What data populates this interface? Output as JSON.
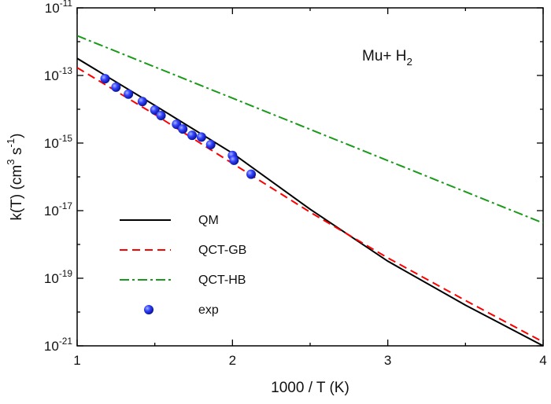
{
  "chart_data": {
    "type": "line",
    "annotation": "Mu+ H_{2}",
    "xlabel": "1000 / T (K)",
    "ylabel": "k(T) (cm^{3} s^{-1})",
    "xlim": [
      1,
      4
    ],
    "xticks": [
      1,
      2,
      3,
      4
    ],
    "minor_xticks": [
      1.5,
      2.5,
      3.5
    ],
    "ylim": [
      1e-21,
      1e-11
    ],
    "log_y": true,
    "yticks": [
      {
        "value": 1e-11,
        "label": "10^{-11}"
      },
      {
        "value": 1e-13,
        "label": "10^{-13}"
      },
      {
        "value": 1e-15,
        "label": "10^{-15}"
      },
      {
        "value": 1e-17,
        "label": "10^{-17}"
      },
      {
        "value": 1e-19,
        "label": "10^{-19}"
      },
      {
        "value": 1e-21,
        "label": "10^{-21}"
      }
    ],
    "minor_yticks": [
      1e-12,
      1e-14,
      1e-16,
      1e-18,
      1e-20
    ],
    "legend": "middle left",
    "series": [
      {
        "name": "QM",
        "color": "#000000",
        "style": "solid",
        "x": [
          1,
          1.5,
          2,
          2.5,
          3,
          3.5,
          4
        ],
        "values": [
          3.2e-13,
          1.3e-14,
          5e-16,
          1.1e-17,
          3.2e-19,
          1.6e-20,
          1e-21
        ]
      },
      {
        "name": "QCT-GB",
        "color": "#ff0000",
        "style": "dashed",
        "x": [
          1,
          1.5,
          2,
          2.5,
          3,
          3.5,
          4
        ],
        "values": [
          1.7e-13,
          7e-15,
          2.5e-16,
          9e-18,
          4e-19,
          2.2e-20,
          1.3e-21
        ]
      },
      {
        "name": "QCT-HB",
        "color": "#1a9a1a",
        "style": "dashdot",
        "x": [
          1,
          4
        ],
        "values": [
          1.5e-12,
          4.3e-18
        ]
      },
      {
        "name": "exp",
        "color": "#2233ee",
        "style": "markers",
        "x": [
          1.18,
          1.25,
          1.33,
          1.42,
          1.5,
          1.54,
          1.64,
          1.68,
          1.74,
          1.8,
          1.86,
          2.0,
          2.01,
          2.12
        ],
        "values": [
          8e-14,
          4.5e-14,
          2.8e-14,
          1.7e-14,
          9.5e-15,
          6.5e-15,
          3.6e-15,
          2.6e-15,
          1.7e-15,
          1.5e-15,
          9e-16,
          4.3e-16,
          3.1e-16,
          1.2e-16
        ]
      }
    ]
  }
}
